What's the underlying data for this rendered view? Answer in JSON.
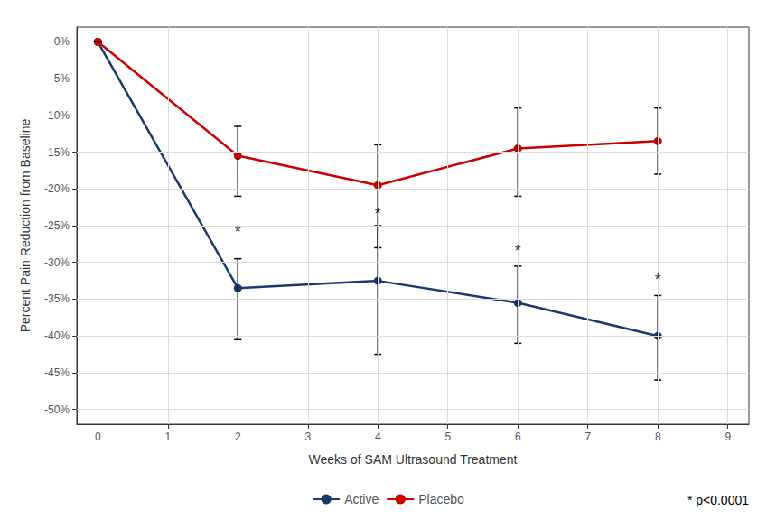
{
  "chart_data": {
    "type": "line",
    "xlabel": "Weeks of SAM Ultrasound Treatment",
    "ylabel": "Percent Pain Reduction from Baseline",
    "x": [
      0,
      2,
      4,
      6,
      8
    ],
    "series": [
      {
        "name": "Active",
        "color": "#1a3a6b",
        "marker": "o",
        "values": [
          0,
          -33.5,
          -32.5,
          -35.5,
          -40.0
        ],
        "err_lower": [
          0,
          7.0,
          10.0,
          5.5,
          6.0
        ],
        "err_upper": [
          0,
          4.0,
          7.5,
          5.0,
          5.5
        ]
      },
      {
        "name": "Placebo",
        "color": "#cc0000",
        "marker": "o",
        "values": [
          0,
          -15.5,
          -19.5,
          -14.5,
          -13.5
        ],
        "err_lower": [
          0,
          5.5,
          8.5,
          6.5,
          4.5
        ],
        "err_upper": [
          0,
          4.0,
          5.5,
          5.5,
          4.5
        ]
      }
    ],
    "annotations": [
      {
        "text": "*",
        "x": 2,
        "y": -27.0
      },
      {
        "text": "*",
        "x": 4,
        "y": -24.5
      },
      {
        "text": "*",
        "x": 6,
        "y": -29.5
      },
      {
        "text": "*",
        "x": 8,
        "y": -33.5
      },
      {
        "text": "* p<0.0001"
      }
    ],
    "xlim": [
      -0.3,
      9.3
    ],
    "xticks": [
      0,
      1,
      2,
      3,
      4,
      5,
      6,
      7,
      8,
      9
    ],
    "ylim": [
      -52,
      2
    ],
    "yticks": [
      {
        "value": 0,
        "label": "0%"
      },
      {
        "value": -5,
        "label": "-5%"
      },
      {
        "value": -10,
        "label": "-10%"
      },
      {
        "value": -15,
        "label": "-15%"
      },
      {
        "value": -20,
        "label": "-20%"
      },
      {
        "value": -25,
        "label": "-25%"
      },
      {
        "value": -30,
        "label": "-30%"
      },
      {
        "value": -35,
        "label": "-35%"
      },
      {
        "value": -40,
        "label": "-40%"
      },
      {
        "value": -45,
        "label": "-45%"
      },
      {
        "value": -50,
        "label": "-50%"
      }
    ],
    "grid": true,
    "legend": "bottom"
  }
}
